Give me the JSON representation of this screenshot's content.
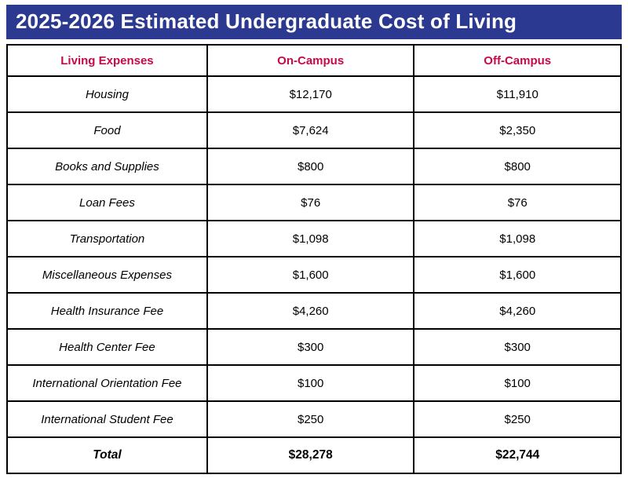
{
  "banner": {
    "title": "2025-2026 Estimated Undergraduate Cost of Living"
  },
  "colors": {
    "banner_background": "#2b3990",
    "banner_text": "#ffffff",
    "column_header_text": "#c5094a",
    "table_border": "#000000",
    "body_text": "#000000"
  },
  "table": {
    "columns": [
      "Living Expenses",
      "On-Campus",
      "Off-Campus"
    ],
    "rows": [
      {
        "expense": "Housing",
        "on_campus": "$12,170",
        "off_campus": "$11,910"
      },
      {
        "expense": "Food",
        "on_campus": "$7,624",
        "off_campus": "$2,350"
      },
      {
        "expense": "Books and Supplies",
        "on_campus": "$800",
        "off_campus": "$800"
      },
      {
        "expense": "Loan Fees",
        "on_campus": "$76",
        "off_campus": "$76"
      },
      {
        "expense": "Transportation",
        "on_campus": "$1,098",
        "off_campus": "$1,098"
      },
      {
        "expense": "Miscellaneous Expenses",
        "on_campus": "$1,600",
        "off_campus": "$1,600"
      },
      {
        "expense": "Health Insurance Fee",
        "on_campus": "$4,260",
        "off_campus": "$4,260"
      },
      {
        "expense": "Health Center Fee",
        "on_campus": "$300",
        "off_campus": "$300"
      },
      {
        "expense": "International Orientation Fee",
        "on_campus": "$100",
        "off_campus": "$100"
      },
      {
        "expense": "International Student Fee",
        "on_campus": "$250",
        "off_campus": "$250"
      }
    ],
    "total_row": {
      "expense": "Total",
      "on_campus": "$28,278",
      "off_campus": "$22,744"
    }
  }
}
